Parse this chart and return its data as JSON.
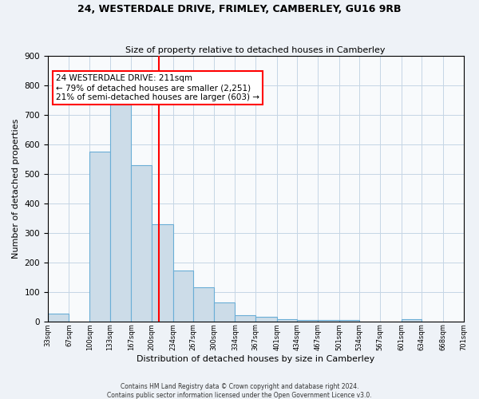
{
  "title": "24, WESTERDALE DRIVE, FRIMLEY, CAMBERLEY, GU16 9RB",
  "subtitle": "Size of property relative to detached houses in Camberley",
  "xlabel": "Distribution of detached houses by size in Camberley",
  "ylabel": "Number of detached properties",
  "bins": [
    33,
    67,
    100,
    133,
    167,
    200,
    234,
    267,
    300,
    334,
    367,
    401,
    434,
    467,
    501,
    534,
    567,
    601,
    634,
    668,
    701
  ],
  "bar_heights": [
    27,
    0,
    575,
    735,
    530,
    330,
    172,
    115,
    65,
    22,
    15,
    8,
    5,
    5,
    5,
    0,
    0,
    8,
    0,
    0
  ],
  "bar_color": "#ccdce8",
  "bar_edgecolor": "#6aaed6",
  "vline_x": 211,
  "vline_color": "red",
  "ylim": [
    0,
    900
  ],
  "yticks": [
    0,
    100,
    200,
    300,
    400,
    500,
    600,
    700,
    800,
    900
  ],
  "xtick_labels": [
    "33sqm",
    "67sqm",
    "100sqm",
    "133sqm",
    "167sqm",
    "200sqm",
    "234sqm",
    "267sqm",
    "300sqm",
    "334sqm",
    "367sqm",
    "401sqm",
    "434sqm",
    "467sqm",
    "501sqm",
    "534sqm",
    "567sqm",
    "601sqm",
    "634sqm",
    "668sqm",
    "701sqm"
  ],
  "annotation_title": "24 WESTERDALE DRIVE: 211sqm",
  "annotation_line1": "← 79% of detached houses are smaller (2,251)",
  "annotation_line2": "21% of semi-detached houses are larger (603) →",
  "footer_line1": "Contains HM Land Registry data © Crown copyright and database right 2024.",
  "footer_line2": "Contains public sector information licensed under the Open Government Licence v3.0.",
  "background_color": "#eef2f7",
  "plot_background_color": "#f8fafc",
  "grid_color": "#c5d5e5"
}
